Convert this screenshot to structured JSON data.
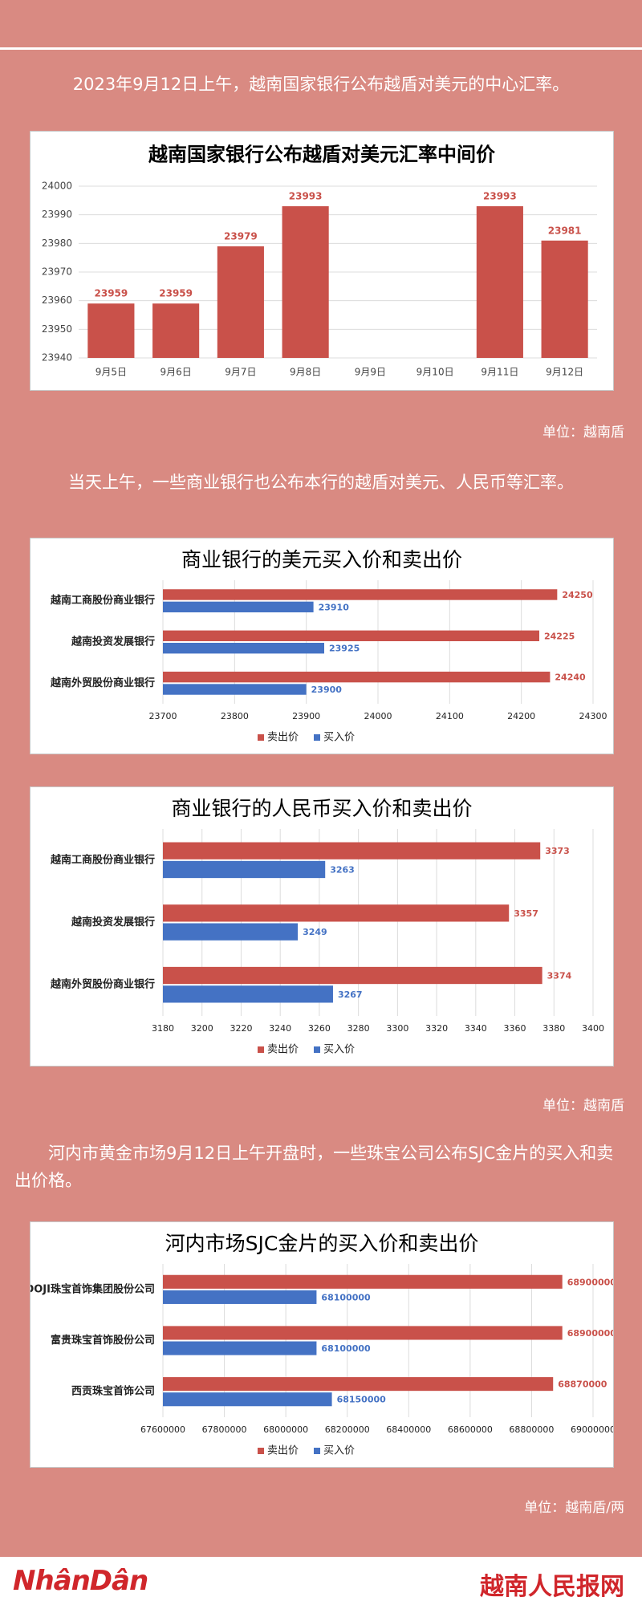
{
  "intro": [
    "2023年9月12日上午，越南国家银行公布越盾对美元的中心汇率。",
    "当天上午，一些商业银行也公布本行的越盾对美元、人民币等汇率。",
    "河内市黄金市场9月12日上午开盘时，一些珠宝公司公布SJC金片的买入和卖出价格。"
  ],
  "units": [
    "单位：越南盾",
    "单位：越南盾",
    "单位：越南盾/两"
  ],
  "footer": {
    "logo": "NhânDân",
    "site": "越南人民报网"
  },
  "chart_data": [
    {
      "type": "bar",
      "title": "越南国家银行公布越盾对美元汇率中间价",
      "categories": [
        "9月5日",
        "9月6日",
        "9月7日",
        "9月8日",
        "9月9日",
        "9月10日",
        "9月11日",
        "9月12日"
      ],
      "values": [
        23959,
        23959,
        23979,
        23993,
        null,
        null,
        23993,
        23981
      ],
      "color": "#c9514a",
      "ylim": [
        23940,
        24000
      ],
      "yticks": [
        23940,
        23950,
        23960,
        23970,
        23980,
        23990,
        24000
      ],
      "grid": true
    },
    {
      "type": "barh",
      "title": "商业银行的美元买入价和卖出价",
      "categories": [
        "越南工商股份商业银行",
        "越南投资发展银行",
        "越南外贸股份商业银行"
      ],
      "series": [
        {
          "name": "卖出价",
          "color": "#c9514a",
          "values": [
            24250,
            24225,
            24240
          ]
        },
        {
          "name": "买入价",
          "color": "#4472c4",
          "values": [
            23910,
            23925,
            23900
          ]
        }
      ],
      "xlim": [
        23700,
        24300
      ],
      "xticks": [
        23700,
        23800,
        23900,
        24000,
        24100,
        24200,
        24300
      ],
      "grid": true
    },
    {
      "type": "barh",
      "title": "商业银行的人民币买入价和卖出价",
      "categories": [
        "越南工商股份商业银行",
        "越南投资发展银行",
        "越南外贸股份商业银行"
      ],
      "series": [
        {
          "name": "卖出价",
          "color": "#c9514a",
          "values": [
            3373,
            3357,
            3374
          ]
        },
        {
          "name": "买入价",
          "color": "#4472c4",
          "values": [
            3263,
            3249,
            3267
          ]
        }
      ],
      "xlim": [
        3180,
        3400
      ],
      "xticks": [
        3180,
        3200,
        3220,
        3240,
        3260,
        3280,
        3300,
        3320,
        3340,
        3360,
        3380,
        3400
      ],
      "grid": true
    },
    {
      "type": "barh",
      "title": "河内市场SJC金片的买入价和卖出价",
      "categories": [
        "DOJI珠宝首饰集团股份公司",
        "富贵珠宝首饰股份公司",
        "西贡珠宝首饰公司"
      ],
      "series": [
        {
          "name": "卖出价",
          "color": "#c9514a",
          "values": [
            68900000,
            68900000,
            68870000
          ]
        },
        {
          "name": "买入价",
          "color": "#4472c4",
          "values": [
            68100000,
            68100000,
            68150000
          ]
        }
      ],
      "xlim": [
        67600000,
        69000000
      ],
      "xticks": [
        67600000,
        67800000,
        68000000,
        68200000,
        68400000,
        68600000,
        68800000,
        69000000
      ],
      "grid": true
    }
  ]
}
